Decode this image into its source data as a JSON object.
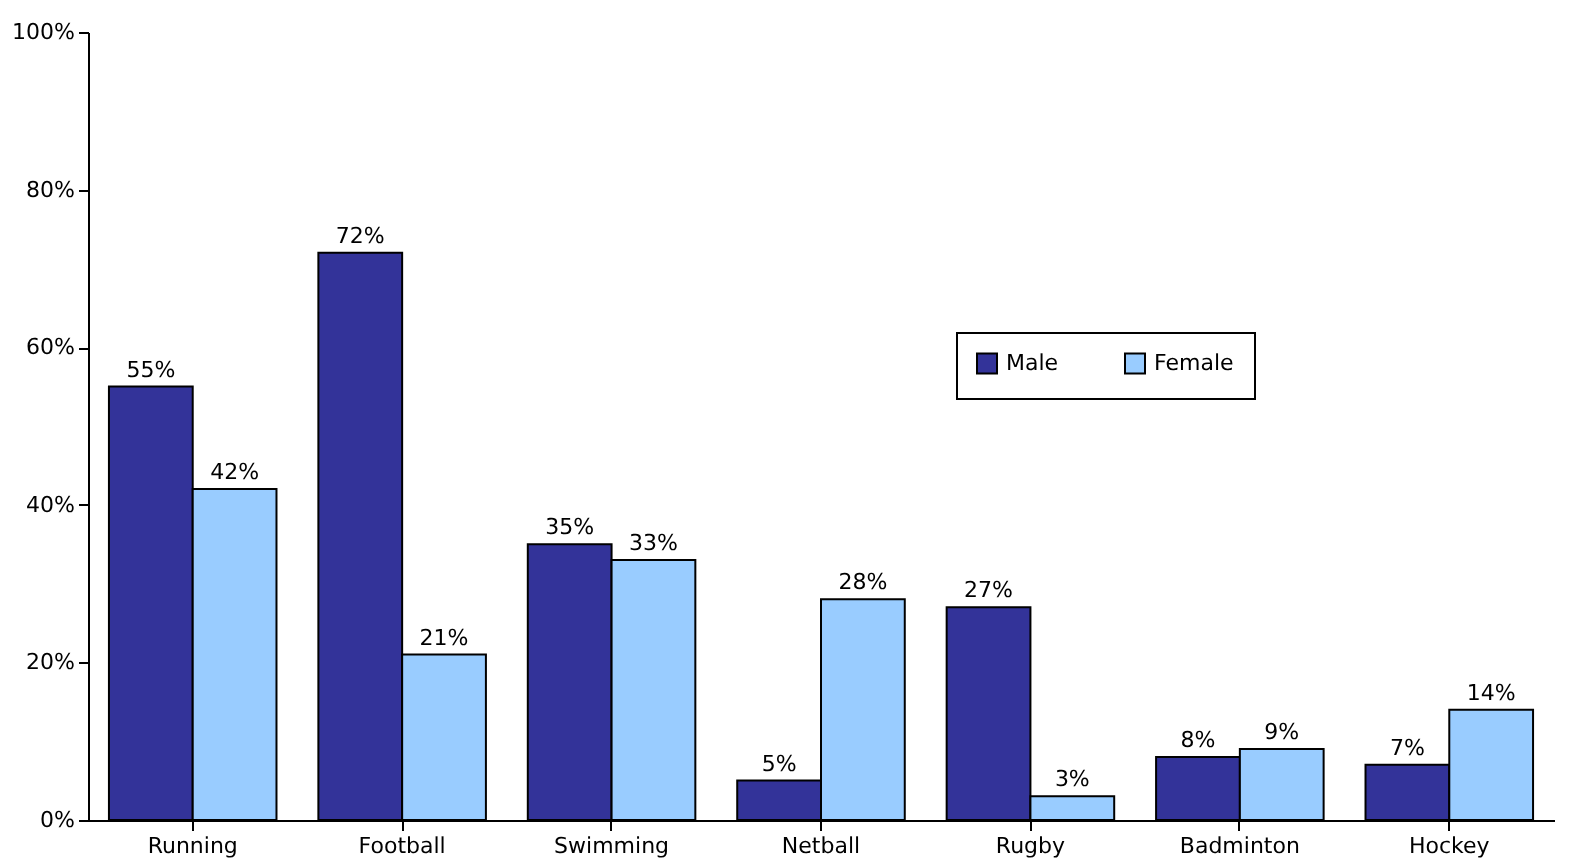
{
  "chart_data": {
    "type": "bar",
    "categories": [
      "Running",
      "Football",
      "Swimming",
      "Netball",
      "Rugby",
      "Badminton",
      "Hockey"
    ],
    "series": [
      {
        "name": "Male",
        "color": "#333399",
        "values": [
          55,
          72,
          35,
          5,
          27,
          8,
          7
        ],
        "value_labels": [
          "55%",
          "72%",
          "35%",
          "5%",
          "27%",
          "8%",
          "7%"
        ]
      },
      {
        "name": "Female",
        "color": "#99ccff",
        "values": [
          42,
          21,
          33,
          28,
          3,
          9,
          14
        ],
        "value_labels": [
          "42%",
          "21%",
          "33%",
          "28%",
          "3%",
          "9%",
          "14%"
        ]
      }
    ],
    "ylim": [
      0,
      100
    ],
    "yticks": [
      {
        "value": 0,
        "label": "0%"
      },
      {
        "value": 20,
        "label": "20%"
      },
      {
        "value": 40,
        "label": "40%"
      },
      {
        "value": 60,
        "label": "60%"
      },
      {
        "value": 80,
        "label": "80%"
      },
      {
        "value": 100,
        "label": "100%"
      }
    ],
    "grid": false,
    "legend": "top right"
  }
}
